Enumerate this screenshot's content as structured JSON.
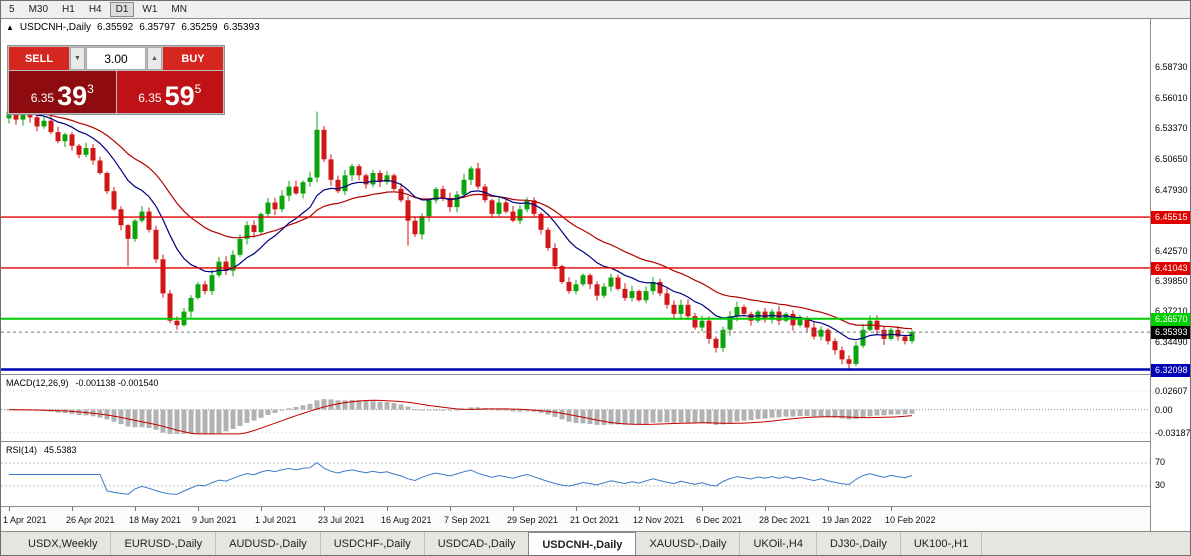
{
  "toolbar": {
    "timeframes": [
      {
        "label": "5",
        "active": false
      },
      {
        "label": "M30",
        "active": false
      },
      {
        "label": "H1",
        "active": false
      },
      {
        "label": "H4",
        "active": false
      },
      {
        "label": "D1",
        "active": true
      },
      {
        "label": "W1",
        "active": false
      },
      {
        "label": "MN",
        "active": false
      }
    ]
  },
  "header": {
    "symbol_icon": "▲",
    "symbol": "USDCNH-,Daily",
    "open": "6.35592",
    "high": "6.35797",
    "low": "6.35259",
    "close": "6.35393"
  },
  "trade_panel": {
    "sell_label": "SELL",
    "buy_label": "BUY",
    "volume": "3.00",
    "stepper_down_icon": "▼",
    "stepper_up_icon": "▲",
    "sell_price": {
      "prefix": "6.35",
      "big": "39",
      "sup": "3"
    },
    "buy_price": {
      "prefix": "6.35",
      "big": "59",
      "sup": "5"
    },
    "colors": {
      "sell_button": "#d5261f",
      "buy_button": "#d5261f",
      "sell_box": "#8e0b10",
      "buy_box": "#bf1217"
    }
  },
  "chart_data": {
    "type": "candlestick",
    "title": "USDCNH-,Daily",
    "x_range": [
      "1 Apr 2021",
      "10 Feb 2022"
    ],
    "ylim": [
      6.317,
      6.633
    ],
    "colors": {
      "up": "#0CA40C",
      "down": "#D01616",
      "ma_fast": "#000080",
      "ma_slow": "#B40000",
      "macd_hist": "#b2b2b2",
      "macd_signal": "#C00000",
      "rsi_line": "#3C78C8"
    },
    "first_open": 6.542,
    "closes": [
      6.548,
      6.541,
      6.55,
      6.543,
      6.535,
      6.54,
      6.53,
      6.522,
      6.528,
      6.518,
      6.51,
      6.516,
      6.505,
      6.494,
      6.478,
      6.462,
      6.448,
      6.436,
      6.452,
      6.46,
      6.444,
      6.418,
      6.388,
      6.364,
      6.36,
      6.372,
      6.384,
      6.396,
      6.39,
      6.404,
      6.416,
      6.408,
      6.422,
      6.436,
      6.448,
      6.442,
      6.458,
      6.468,
      6.462,
      6.474,
      6.482,
      6.476,
      6.486,
      6.49,
      6.532,
      6.506,
      6.488,
      6.478,
      6.492,
      6.5,
      6.492,
      6.484,
      6.494,
      6.486,
      6.492,
      6.48,
      6.47,
      6.452,
      6.44,
      6.456,
      6.47,
      6.48,
      6.472,
      6.464,
      6.475,
      6.488,
      6.498,
      6.482,
      6.47,
      6.458,
      6.468,
      6.46,
      6.452,
      6.462,
      6.47,
      6.458,
      6.444,
      6.428,
      6.412,
      6.398,
      6.39,
      6.396,
      6.404,
      6.396,
      6.386,
      6.394,
      6.402,
      6.392,
      6.384,
      6.39,
      6.382,
      6.39,
      6.398,
      6.388,
      6.378,
      6.37,
      6.378,
      6.368,
      6.358,
      6.364,
      6.348,
      6.34,
      6.356,
      6.368,
      6.376,
      6.37,
      6.364,
      6.372,
      6.366,
      6.372,
      6.364,
      6.37,
      6.36,
      6.366,
      6.358,
      6.35,
      6.356,
      6.346,
      6.338,
      6.33,
      6.326,
      6.342,
      6.356,
      6.364,
      6.356,
      6.348,
      6.356,
      6.35,
      6.346,
      6.354
    ],
    "wick_overrides": {
      "17": {
        "l": 6.412
      },
      "24": {
        "l": 6.356
      },
      "44": {
        "h": 6.548
      },
      "57": {
        "l": 6.43
      },
      "101": {
        "l": 6.336
      },
      "120": {
        "l": 6.3215
      }
    },
    "y_axis_ticks": [
      {
        "v": 6.5873,
        "label": "6.58730"
      },
      {
        "v": 6.5601,
        "label": "6.56010"
      },
      {
        "v": 6.5337,
        "label": "6.53370"
      },
      {
        "v": 6.5065,
        "label": "6.50650"
      },
      {
        "v": 6.4793,
        "label": "6.47930"
      },
      {
        "v": 6.4257,
        "label": "6.42570"
      },
      {
        "v": 6.3985,
        "label": "6.39850"
      },
      {
        "v": 6.3721,
        "label": "6.37210"
      },
      {
        "v": 6.3449,
        "label": "6.34490"
      }
    ],
    "levels": [
      {
        "v": 6.45515,
        "label": "6.45515",
        "color": "#E00000",
        "width": 1.4,
        "text_color": "#ffffff"
      },
      {
        "v": 6.41043,
        "label": "6.41043",
        "color": "#E00000",
        "width": 1.4,
        "text_color": "#ffffff"
      },
      {
        "v": 6.3657,
        "label": "6.36570",
        "color": "#00CC00",
        "width": 2,
        "text_color": "#ffffff"
      },
      {
        "v": 6.32098,
        "label": "6.32098",
        "color": "#0000B4",
        "width": 2.5,
        "text_color": "#ffffff"
      }
    ],
    "current_price": {
      "v": 6.35393,
      "label": "6.35393",
      "bg": "#000000",
      "text_color": "#ffffff"
    },
    "x_labels": [
      {
        "label": "1 Apr 2021",
        "i": 0
      },
      {
        "label": "26 Apr 2021",
        "i": 9
      },
      {
        "label": "18 May 2021",
        "i": 18
      },
      {
        "label": "9 Jun 2021",
        "i": 27
      },
      {
        "label": "1 Jul 2021",
        "i": 36
      },
      {
        "label": "23 Jul 2021",
        "i": 45
      },
      {
        "label": "16 Aug 2021",
        "i": 54
      },
      {
        "label": "7 Sep 2021",
        "i": 63
      },
      {
        "label": "29 Sep 2021",
        "i": 72
      },
      {
        "label": "21 Oct 2021",
        "i": 81
      },
      {
        "label": "12 Nov 2021",
        "i": 90
      },
      {
        "label": "6 Dec 2021",
        "i": 99
      },
      {
        "label": "28 Dec 2021",
        "i": 108
      },
      {
        "label": "19 Jan 2022",
        "i": 117
      },
      {
        "label": "10 Feb 2022",
        "i": 126
      }
    ],
    "indicators": {
      "macd": {
        "name": "MACD(12,26,9)",
        "values": "-0.001138 -0.001540",
        "fast": 12,
        "slow": 26,
        "signal": 9,
        "axis": [
          {
            "v": 0.02607,
            "label": "0.02607"
          },
          {
            "v": 0,
            "label": "0.00"
          },
          {
            "v": -0.03187,
            "label": "-0.03187"
          }
        ]
      },
      "rsi": {
        "name": "RSI(14)",
        "value": "45.5383",
        "period": 14,
        "levels": [
          70,
          30
        ],
        "axis": [
          {
            "v": 70,
            "label": "70"
          },
          {
            "v": 30,
            "label": "30"
          }
        ]
      }
    }
  },
  "tabs": [
    {
      "label": "USDX,Weekly",
      "active": false
    },
    {
      "label": "EURUSD-,Daily",
      "active": false
    },
    {
      "label": "AUDUSD-,Daily",
      "active": false
    },
    {
      "label": "USDCHF-,Daily",
      "active": false
    },
    {
      "label": "USDCAD-,Daily",
      "active": false
    },
    {
      "label": "USDCNH-,Daily",
      "active": true
    },
    {
      "label": "XAUUSD-,Daily",
      "active": false
    },
    {
      "label": "UKOil-,H4",
      "active": false
    },
    {
      "label": "DJ30-,Daily",
      "active": false
    },
    {
      "label": "UK100-,H1",
      "active": false
    }
  ]
}
